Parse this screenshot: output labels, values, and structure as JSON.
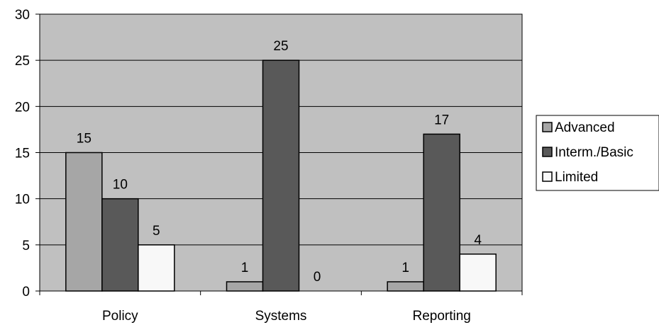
{
  "chart_data": {
    "type": "bar",
    "title": "",
    "xlabel": "",
    "ylabel": "",
    "categories": [
      "Policy",
      "Systems",
      "Reporting"
    ],
    "series": [
      {
        "name": "Advanced",
        "values": [
          15,
          1,
          1
        ],
        "color": "#a6a6a6"
      },
      {
        "name": "Interm./Basic",
        "values": [
          10,
          25,
          17
        ],
        "color": "#595959"
      },
      {
        "name": "Limited",
        "values": [
          5,
          0,
          4
        ],
        "color": "#f8f8f8"
      }
    ],
    "ylim": [
      0,
      30
    ],
    "yticks": [
      0,
      5,
      10,
      15,
      20,
      25,
      30
    ],
    "grid": true,
    "legend_position": "right",
    "plot_background": "#c0c0c0"
  }
}
